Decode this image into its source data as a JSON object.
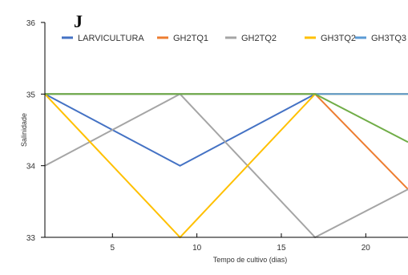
{
  "panel_label": "J",
  "colors": {
    "larvicultura": "#4472c4",
    "gh2tq1": "#ed7d31",
    "gh2tq2": "#a5a5a5",
    "gh3tq2": "#ffc000",
    "gh3tq3": "#5b9bd5",
    "extra": "#70ad47",
    "axis": "#000000",
    "text": "#333333"
  },
  "chart_data": {
    "type": "line",
    "title": "",
    "xlabel": "Tempo de cultivo  (dias)",
    "ylabel": "Salinidade",
    "xlim": [
      1,
      22.5
    ],
    "ylim": [
      33,
      36
    ],
    "xticks": [
      5,
      10,
      15,
      20
    ],
    "yticks": [
      33,
      34,
      35,
      36
    ],
    "grid": false,
    "legend_position": "top",
    "series": [
      {
        "name": "LARVICULTURA",
        "color": "#4472c4",
        "x": [
          1,
          9,
          17,
          22.5
        ],
        "y": [
          35,
          34,
          35,
          35
        ]
      },
      {
        "name": "GH2TQ1",
        "color": "#ed7d31",
        "x": [
          1,
          9,
          17,
          22.5
        ],
        "y": [
          35,
          35,
          35,
          33.67
        ]
      },
      {
        "name": "GH2TQ2",
        "color": "#a5a5a5",
        "x": [
          1,
          9,
          17,
          22.5
        ],
        "y": [
          34,
          35,
          33,
          33.67
        ]
      },
      {
        "name": "GH3TQ2",
        "color": "#ffc000",
        "x": [
          1,
          9,
          17,
          22.5
        ],
        "y": [
          35,
          33,
          35,
          35
        ]
      },
      {
        "name": "GH3TQ3",
        "color": "#5b9bd5",
        "x": [
          1,
          9,
          17,
          22.5
        ],
        "y": [
          35,
          35,
          35,
          35
        ]
      },
      {
        "color": "#70ad47",
        "x": [
          1,
          9,
          17,
          22.5
        ],
        "y": [
          35,
          35,
          35,
          34.33
        ]
      }
    ]
  }
}
